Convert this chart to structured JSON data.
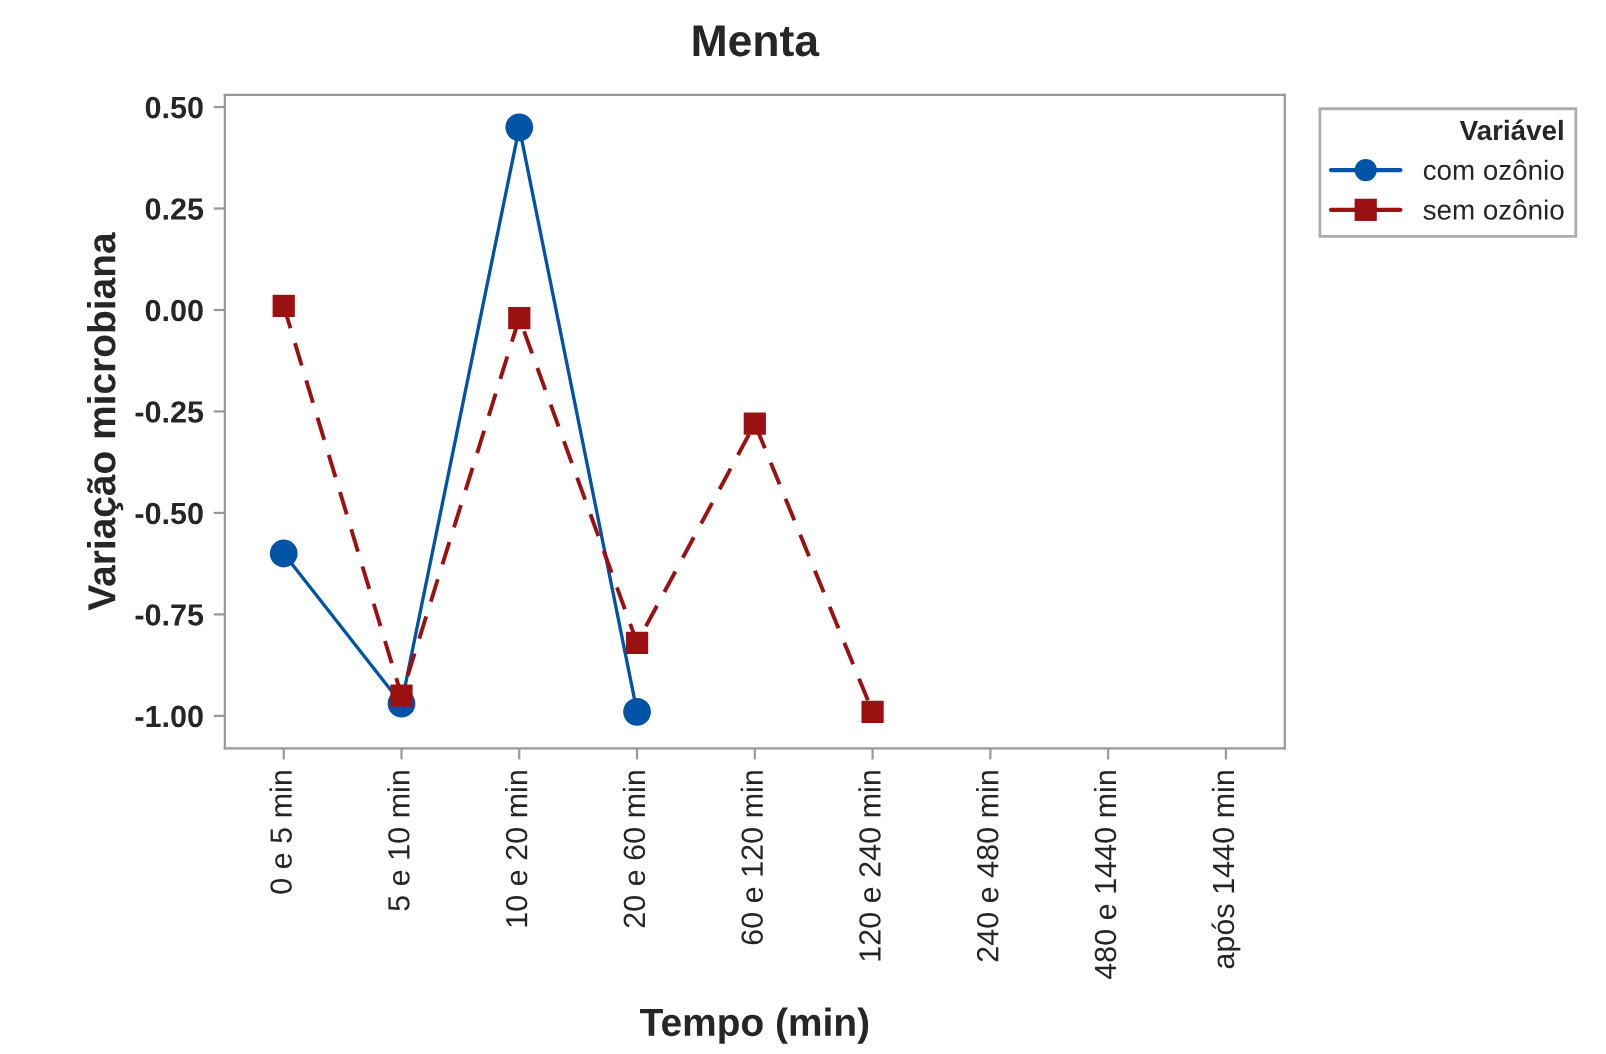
{
  "chart_data": {
    "type": "line",
    "title": "Menta",
    "xlabel": "Tempo (min)",
    "ylabel": "Variação microbiana",
    "legend_title": "Variável",
    "categories": [
      "0 e 5 min",
      "5 e 10 min",
      "10 e 20 min",
      "20 e 60 min",
      "60 e 120 min",
      "120 e 240 min",
      "240 e 480 min",
      "480 e 1440 min",
      "após 1440 min"
    ],
    "series": [
      {
        "name": "com ozônio",
        "color": "#0054a6",
        "marker": "circle",
        "line_style": "solid",
        "values": [
          -0.6,
          -0.97,
          0.45,
          -0.99,
          null,
          null,
          null,
          null,
          null
        ]
      },
      {
        "name": "sem ozônio",
        "color": "#9b1111",
        "marker": "square",
        "line_style": "dashed",
        "values": [
          0.01,
          -0.95,
          -0.02,
          -0.82,
          -0.28,
          -0.99,
          null,
          null,
          null
        ]
      }
    ],
    "ylim": [
      -1.08,
      0.53
    ],
    "yticks": [
      {
        "value": 0.5,
        "label": "0.50"
      },
      {
        "value": 0.25,
        "label": "0.25"
      },
      {
        "value": 0,
        "label": "0.00"
      },
      {
        "value": -0.25,
        "label": "-0.25"
      },
      {
        "value": -0.5,
        "label": "-0.50"
      },
      {
        "value": -0.75,
        "label": "-0.75"
      },
      {
        "value": -1,
        "label": "-1.00"
      }
    ],
    "grid": false,
    "legend": "top right"
  }
}
